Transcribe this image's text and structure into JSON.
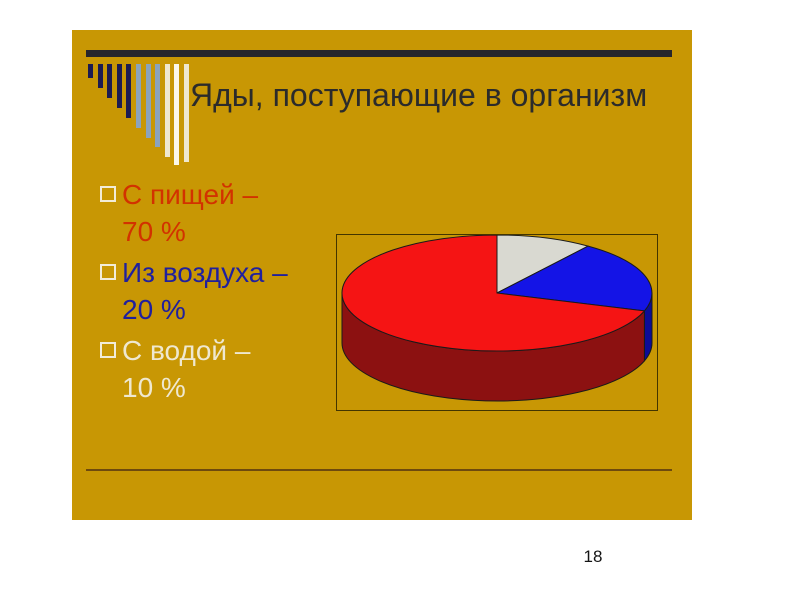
{
  "slide": {
    "title": "Яды, поступающие в организм",
    "page_number": "18",
    "bullets": [
      {
        "label": "С пищей –",
        "value": "70 %",
        "color": "#d23200"
      },
      {
        "label": "Из воздуха –",
        "value": "20 %",
        "color": "#20209e"
      },
      {
        "label": "С водой –",
        "value": "10 %",
        "color": "#efe8d0"
      }
    ],
    "colors": {
      "slide_background": "#c89704",
      "title_text": "#2b2b2b",
      "top_bar": "#26262c",
      "divider_line": "#6e4a0e",
      "bullet_square": "#f2ecd8",
      "deco_navy": "#1b1b52",
      "deco_steel": "#8aa3bd",
      "deco_cream": "#efe8cf",
      "deco_white": "#fbf8ea"
    }
  },
  "chart_data": {
    "type": "pie",
    "style": "3d",
    "title": "",
    "legend": "none",
    "unit": "%",
    "start_angle_deg": 0,
    "direction": "clockwise",
    "categories": [
      "С водой",
      "Из воздуха",
      "С пищей"
    ],
    "values": [
      10,
      20,
      70
    ],
    "colors": [
      "#d9d9d1",
      "#1414e6",
      "#f51414"
    ],
    "side_colors": [
      "#9a9a90",
      "#0c0c96",
      "#8c1111"
    ],
    "outline_color": "#1a1a1a",
    "frame_border": "#433500"
  }
}
